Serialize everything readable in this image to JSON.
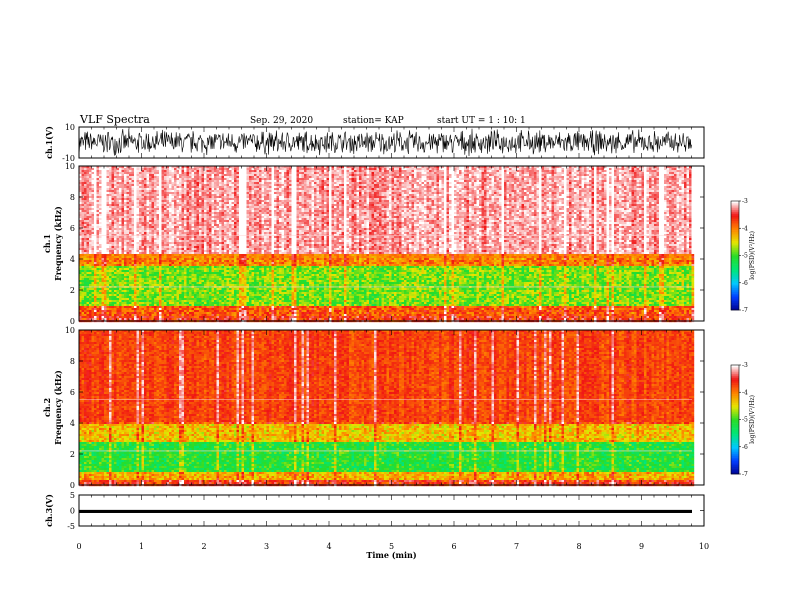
{
  "header": {
    "title": "VLF Spectra",
    "date": "Sep. 29, 2020",
    "station": "station= KAP",
    "start": "start  UT =   1 : 10: 1"
  },
  "chart_data": [
    {
      "type": "line",
      "panel": "ch1-waveform",
      "ylabel": "ch.1(V)",
      "ylim": [
        -10,
        10
      ],
      "yticks": [
        "10",
        "-10"
      ],
      "xlim": [
        0,
        10
      ],
      "trace_range": [
        -9,
        9
      ],
      "grid": false
    },
    {
      "type": "heatmap",
      "panel": "ch1-spectrogram",
      "ylabel": "ch.1\nFrequency  (kHz)",
      "ylabel_lines": [
        "ch.1",
        "Frequency  (kHz)"
      ],
      "ylim": [
        0,
        10
      ],
      "yticks": [
        "0",
        "2",
        "4",
        "6",
        "8",
        "10"
      ],
      "xlim": [
        0,
        9.8
      ],
      "colorbar": {
        "label": "log(PSD)(V²/Hz)",
        "range": [
          -7,
          -3
        ],
        "ticks": [
          "-3",
          "-4",
          "-5",
          "-6",
          "-7"
        ]
      },
      "bands": [
        {
          "freq_khz": [
            0.3,
            1.0
          ],
          "level": -3.8
        },
        {
          "freq_khz": [
            1.0,
            3.5
          ],
          "level": -4.8
        },
        {
          "freq_khz": [
            3.5,
            4.3
          ],
          "level": -4.0
        },
        {
          "freq_khz": [
            4.3,
            10.0
          ],
          "level": -3.2
        }
      ]
    },
    {
      "type": "heatmap",
      "panel": "ch2-spectrogram",
      "ylabel": "ch.2\nFrequency  (kHz)",
      "ylabel_lines": [
        "ch.2",
        "Frequency  (kHz)"
      ],
      "ylim": [
        0,
        10
      ],
      "yticks": [
        "0",
        "2",
        "4",
        "6",
        "8",
        "10"
      ],
      "xlim": [
        0,
        9.8
      ],
      "colorbar": {
        "label": "log(PSD)(V²/Hz)",
        "range": [
          -7,
          -3
        ],
        "ticks": [
          "-3",
          "-4",
          "-5",
          "-6",
          "-7"
        ]
      },
      "bands": [
        {
          "freq_khz": [
            0.3,
            0.8
          ],
          "level": -4.2
        },
        {
          "freq_khz": [
            0.8,
            2.8
          ],
          "level": -5.1
        },
        {
          "freq_khz": [
            2.8,
            4.0
          ],
          "level": -4.3
        },
        {
          "freq_khz": [
            4.0,
            10.0
          ],
          "level": -3.7
        }
      ]
    },
    {
      "type": "line",
      "panel": "ch3-waveform",
      "ylabel": "ch.3(V)",
      "ylim": [
        -5,
        5
      ],
      "yticks": [
        "5",
        "0",
        "-5"
      ],
      "xlim": [
        0,
        10
      ],
      "trace_range": [
        -0.8,
        0.2
      ],
      "xlabel": "Time  (min)",
      "xticks": [
        "0",
        "1",
        "2",
        "3",
        "4",
        "5",
        "6",
        "7",
        "8",
        "9",
        "10"
      ]
    }
  ]
}
